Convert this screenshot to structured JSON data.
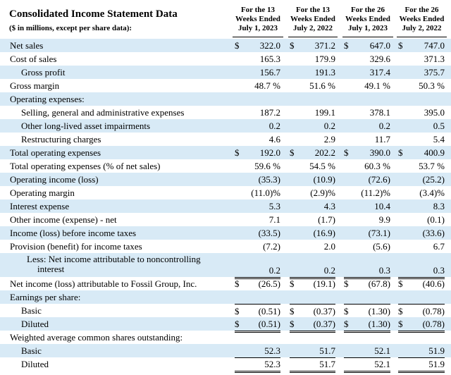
{
  "header": {
    "title": "Consolidated Income Statement Data",
    "subtitle": "($ in millions, except per share data):",
    "columns": [
      {
        "l1": "For the 13",
        "l2": "Weeks Ended",
        "l3": "July 1, 2023"
      },
      {
        "l1": "For the 13",
        "l2": "Weeks Ended",
        "l3": "July 2, 2022"
      },
      {
        "l1": "For the 26",
        "l2": "Weeks Ended",
        "l3": "July 1, 2023"
      },
      {
        "l1": "For the 26",
        "l2": "Weeks Ended",
        "l3": "July 2, 2022"
      }
    ]
  },
  "rows": [
    {
      "label": "Net sales",
      "values": [
        "322.0",
        "371.2",
        "647.0",
        "747.0"
      ],
      "dollar": true
    },
    {
      "label": "Cost of sales",
      "values": [
        "165.3",
        "179.9",
        "329.6",
        "371.3"
      ]
    },
    {
      "label": "Gross profit",
      "values": [
        "156.7",
        "191.3",
        "317.4",
        "375.7"
      ],
      "indent": 1
    },
    {
      "label": "Gross margin",
      "values": [
        "48.7 %",
        "51.6 %",
        "49.1 %",
        "50.3 %"
      ]
    },
    {
      "label": "Operating expenses:",
      "values": [
        "",
        "",
        "",
        ""
      ]
    },
    {
      "label": "Selling, general and administrative expenses",
      "values": [
        "187.2",
        "199.1",
        "378.1",
        "395.0"
      ],
      "indent": 1
    },
    {
      "label": "Other long-lived asset impairments",
      "values": [
        "0.2",
        "0.2",
        "0.2",
        "0.5"
      ],
      "indent": 1
    },
    {
      "label": "Restructuring charges",
      "values": [
        "4.6",
        "2.9",
        "11.7",
        "5.4"
      ],
      "indent": 1
    },
    {
      "label": "Total operating expenses",
      "values": [
        "192.0",
        "202.2",
        "390.0",
        "400.9"
      ],
      "dollar": true
    },
    {
      "label": "Total operating expenses (% of net sales)",
      "values": [
        "59.6 %",
        "54.5 %",
        "60.3 %",
        "53.7 %"
      ]
    },
    {
      "label": "Operating income (loss)",
      "values": [
        "(35.3)",
        "(10.9)",
        "(72.6)",
        "(25.2)"
      ]
    },
    {
      "label": "Operating margin",
      "values": [
        "(11.0)%",
        "(2.9)%",
        "(11.2)%",
        "(3.4)%"
      ]
    },
    {
      "label": "Interest expense",
      "values": [
        "5.3",
        "4.3",
        "10.4",
        "8.3"
      ]
    },
    {
      "label": "Other income (expense) - net",
      "values": [
        "7.1",
        "(1.7)",
        "9.9",
        "(0.1)"
      ]
    },
    {
      "label": "Income (loss) before income taxes",
      "values": [
        "(33.5)",
        "(16.9)",
        "(73.1)",
        "(33.6)"
      ]
    },
    {
      "label": "Provision (benefit) for income taxes",
      "values": [
        "(7.2)",
        "2.0",
        "(5.6)",
        "6.7"
      ]
    },
    {
      "label": "Less: Net income attributable to noncontrolling",
      "label2": "interest",
      "values": [
        "0.2",
        "0.2",
        "0.3",
        "0.3"
      ],
      "indent": 2
    },
    {
      "label": "Net income (loss) attributable to Fossil Group, Inc.",
      "values": [
        "(26.5)",
        "(19.1)",
        "(67.8)",
        "(40.6)"
      ],
      "dollar": true
    },
    {
      "label": "Earnings per share:",
      "values": [
        "",
        "",
        "",
        ""
      ]
    },
    {
      "label": "Basic",
      "values": [
        "(0.51)",
        "(0.37)",
        "(1.30)",
        "(0.78)"
      ],
      "dollar": true,
      "indent": 1
    },
    {
      "label": "Diluted",
      "values": [
        "(0.51)",
        "(0.37)",
        "(1.30)",
        "(0.78)"
      ],
      "dollar": true,
      "indent": 1
    },
    {
      "label": "Weighted average common shares outstanding:",
      "values": [
        "",
        "",
        "",
        ""
      ]
    },
    {
      "label": "Basic",
      "values": [
        "52.3",
        "51.7",
        "52.1",
        "51.9"
      ],
      "indent": 1
    },
    {
      "label": "Diluted",
      "values": [
        "52.3",
        "51.7",
        "52.1",
        "51.9"
      ],
      "indent": 1
    }
  ],
  "currency_symbol": "$",
  "colors": {
    "shade": "#d8eaf6"
  }
}
